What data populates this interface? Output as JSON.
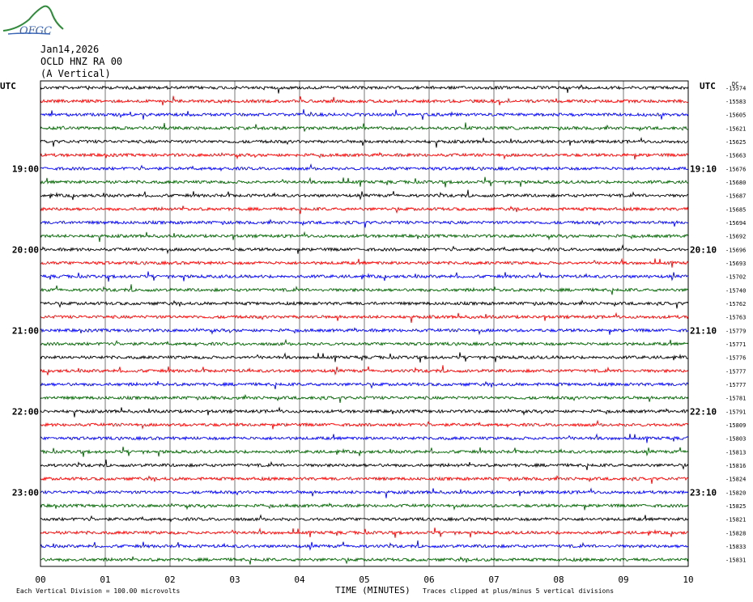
{
  "header": {
    "logo_text": "OFGC",
    "date": "Jan14,2026",
    "station": "OCLD HNZ RA 00",
    "component": "(A Vertical)"
  },
  "left_axis_label": "UTC",
  "right_axis_label": "UTC",
  "right_top_tag": "DC",
  "footer": {
    "scale_note": "Each Vertical Division =  100.00 microvolts",
    "xlabel": "TIME (MINUTES)",
    "clip_note": "Traces clipped at plus/minus 5 vertical divisions"
  },
  "colors": {
    "trace_cycle": [
      "#000000",
      "#ff0000",
      "#0000ff",
      "#006400"
    ],
    "grid": "#555555"
  },
  "chart_data": {
    "type": "line",
    "title": "OCLD HNZ RA 00",
    "xlabel": "TIME (MINUTES)",
    "ylabel": "UTC",
    "xlim": [
      0,
      10
    ],
    "x_ticks": [
      "00",
      "01",
      "02",
      "03",
      "04",
      "05",
      "06",
      "07",
      "08",
      "09",
      "10"
    ],
    "left_time_labels": [
      {
        "row": 6,
        "text": "19:00"
      },
      {
        "row": 12,
        "text": "20:00"
      },
      {
        "row": 18,
        "text": "21:00"
      },
      {
        "row": 24,
        "text": "22:00"
      },
      {
        "row": 30,
        "text": "23:00"
      }
    ],
    "right_time_labels": [
      {
        "row": 6,
        "text": "19:10"
      },
      {
        "row": 12,
        "text": "20:10"
      },
      {
        "row": 18,
        "text": "21:10"
      },
      {
        "row": 24,
        "text": "22:10"
      },
      {
        "row": 30,
        "text": "23:10"
      }
    ],
    "trace_offsets": [
      "-15574",
      "-15583",
      "-15605",
      "-15621",
      "-15625",
      "-15663",
      "-15676",
      "-15680",
      "-15687",
      "-15685",
      "-15694",
      "-15692",
      "-15696",
      "-15693",
      "-15702",
      "-15740",
      "-15762",
      "-15763",
      "-15779",
      "-15771",
      "-15776",
      "-15777",
      "-15777",
      "-15781",
      "-15791",
      "-15809",
      "-15803",
      "-15813",
      "-15816",
      "-15824",
      "-15820",
      "-15825",
      "-15821",
      "-15828",
      "-15833",
      "-15831"
    ]
  }
}
